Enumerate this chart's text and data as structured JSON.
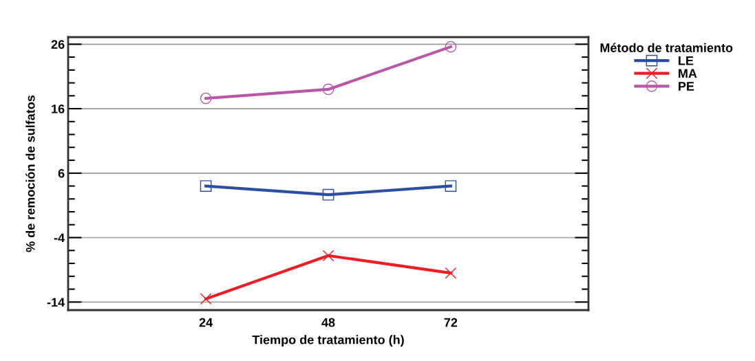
{
  "chart_data": {
    "type": "line",
    "xlabel": "Tiempo de tratamiento (h)",
    "ylabel": "% de remoción de sulfatos",
    "legend_title": "Método de tratamiento",
    "x": [
      24,
      48,
      72
    ],
    "xlim": [
      -3,
      99
    ],
    "xticks": [
      24,
      48,
      72
    ],
    "ylim": [
      -15.25,
      27.1
    ],
    "yticks": [
      -14,
      -4,
      6,
      16,
      26
    ],
    "grid": "y",
    "legend": "top right",
    "series": [
      {
        "name": "LE",
        "color": "#2b4fa0",
        "marker": "square",
        "values": [
          4.0,
          2.65,
          4.0
        ]
      },
      {
        "name": "MA",
        "color": "#ee1c25",
        "marker": "cross",
        "values": [
          -13.5,
          -6.8,
          -9.5
        ]
      },
      {
        "name": "PE",
        "color": "#b856a8",
        "marker": "circle",
        "values": [
          17.6,
          19.0,
          25.6
        ]
      }
    ]
  }
}
